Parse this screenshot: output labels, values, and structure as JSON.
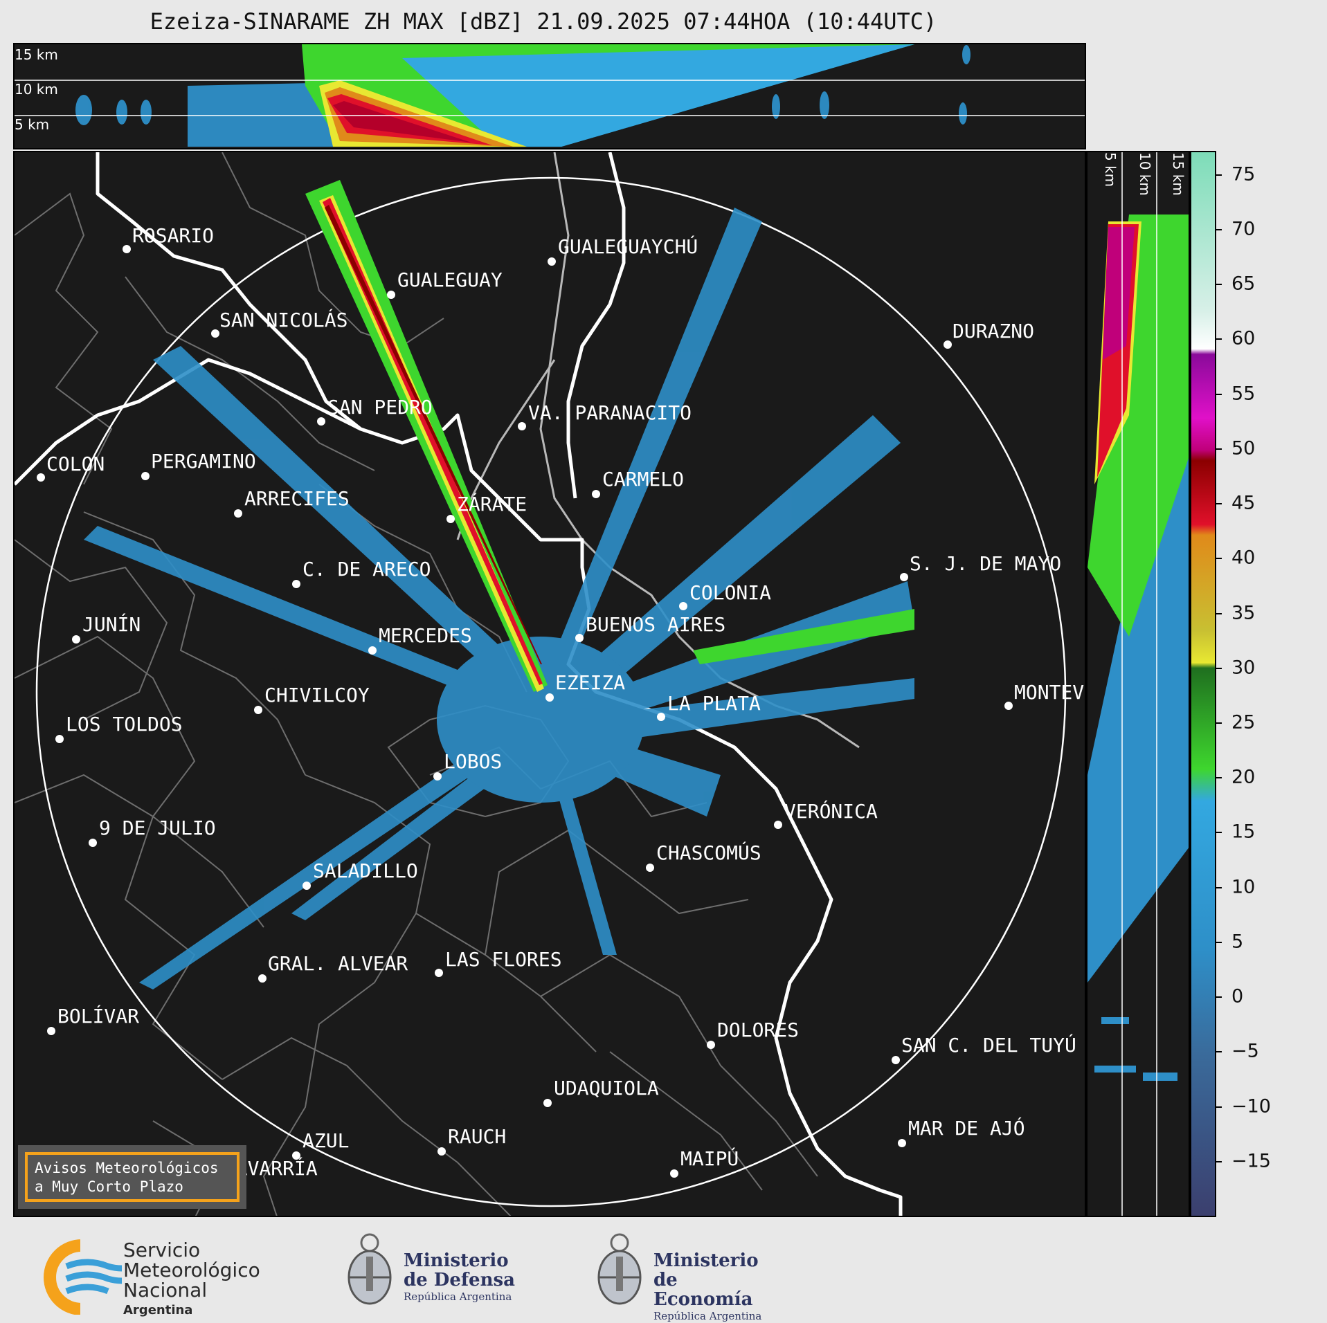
{
  "title": "Ezeiza-SINARAME ZH MAX [dBZ] 21.09.2025 07:44HOA (10:44UTC)",
  "top_panel": {
    "altitude_labels": [
      "15 km",
      "10 km",
      "5 km"
    ]
  },
  "side_panel": {
    "altitude_labels": [
      "5 km",
      "10 km",
      "15 km"
    ]
  },
  "colorbar": {
    "unit": "dBZ",
    "ticks": [
      "75",
      "70",
      "65",
      "60",
      "55",
      "50",
      "45",
      "40",
      "35",
      "30",
      "25",
      "20",
      "15",
      "10",
      "5",
      "0",
      "−5",
      "−10",
      "−15"
    ],
    "range": [
      -20,
      77
    ],
    "colors": {
      "low": "#3b3f6e",
      "blue": "#2e8fc8",
      "cyan": "#33a8e0",
      "green": "#3ed62e",
      "darkgreen": "#1f6f1f",
      "yellow": "#e8e832",
      "orange": "#e08a1a",
      "red": "#e0102a",
      "darkred": "#8b0000",
      "magenta": "#e010c8",
      "purple": "#8a0a9a",
      "white": "#ffffff",
      "mint": "#7ddcb8"
    }
  },
  "cities": [
    {
      "name": "ROSARIO"
    },
    {
      "name": "GUALEGUAYCHÚ"
    },
    {
      "name": "GUALEGUAY"
    },
    {
      "name": "SAN NICOLÁS"
    },
    {
      "name": "DURAZNO"
    },
    {
      "name": "SAN PEDRO"
    },
    {
      "name": "VA. PARANACITO"
    },
    {
      "name": "COLON"
    },
    {
      "name": "PERGAMINO"
    },
    {
      "name": "CARMELO"
    },
    {
      "name": "ARRECIFES"
    },
    {
      "name": "ZÁRATE"
    },
    {
      "name": "S. J. DE MAYO"
    },
    {
      "name": "C. DE ARECO"
    },
    {
      "name": "COLONIA"
    },
    {
      "name": "JUNÍN"
    },
    {
      "name": "BUENOS AIRES"
    },
    {
      "name": "MERCEDES"
    },
    {
      "name": "EZEIZA"
    },
    {
      "name": "MONTEVIDEO"
    },
    {
      "name": "CHIVILCOY"
    },
    {
      "name": "LA PLATA"
    },
    {
      "name": "LOS TOLDOS"
    },
    {
      "name": "LOBOS"
    },
    {
      "name": "VERÓNICA"
    },
    {
      "name": "9 DE JULIO"
    },
    {
      "name": "CHASCOMÚS"
    },
    {
      "name": "SALADILLO"
    },
    {
      "name": "GRAL. ALVEAR"
    },
    {
      "name": "LAS FLORES"
    },
    {
      "name": "BOLÍVAR"
    },
    {
      "name": "DOLORES"
    },
    {
      "name": "SAN C. DEL TUYÚ"
    },
    {
      "name": "UDAQUIOLA"
    },
    {
      "name": "MAR DE AJÓ"
    },
    {
      "name": "AZUL"
    },
    {
      "name": "RAUCH"
    },
    {
      "name": "MAIPÚ"
    },
    {
      "name": "OLAVARRÍA"
    }
  ],
  "badge": {
    "line1": "Avisos Meteorológicos",
    "line2": "a Muy Corto Plazo"
  },
  "footer": {
    "smn": {
      "line1": "Servicio",
      "line2": "Meteorológico",
      "line3": "Nacional",
      "line4": "Argentina"
    },
    "defensa": {
      "line1": "Ministerio",
      "line2": "de Defensa",
      "line3": "República Argentina"
    },
    "economia": {
      "line1": "Ministerio",
      "line2": "de Economía",
      "line3": "República Argentina"
    }
  }
}
